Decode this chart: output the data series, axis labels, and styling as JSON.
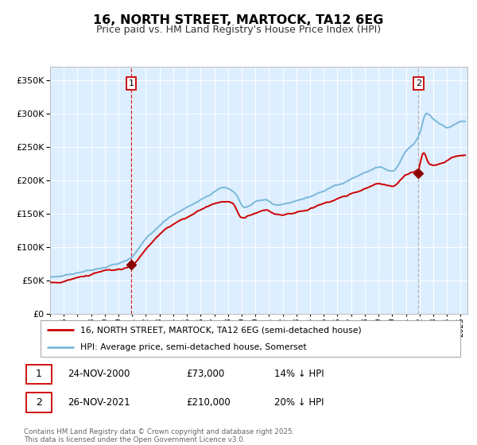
{
  "title": "16, NORTH STREET, MARTOCK, TA12 6EG",
  "subtitle": "Price paid vs. HM Land Registry's House Price Index (HPI)",
  "legend_line1": "16, NORTH STREET, MARTOCK, TA12 6EG (semi-detached house)",
  "legend_line2": "HPI: Average price, semi-detached house, Somerset",
  "annotation1_date": "24-NOV-2000",
  "annotation1_price": "£73,000",
  "annotation1_hpi": "14% ↓ HPI",
  "annotation2_date": "26-NOV-2021",
  "annotation2_price": "£210,000",
  "annotation2_hpi": "20% ↓ HPI",
  "footer": "Contains HM Land Registry data © Crown copyright and database right 2025.\nThis data is licensed under the Open Government Licence v3.0.",
  "hpi_color": "#7ab8d9",
  "price_color": "#cc0000",
  "marker_color": "#8b0000",
  "vline1_color": "#cc0000",
  "vline2_color": "#aaaaaa",
  "bg_color": "#ddeeff",
  "plot_bg": "#ffffff",
  "ylim": [
    0,
    370000
  ],
  "yticks": [
    0,
    50000,
    100000,
    150000,
    200000,
    250000,
    300000,
    350000
  ],
  "xstart": 1995,
  "xend": 2025.5
}
